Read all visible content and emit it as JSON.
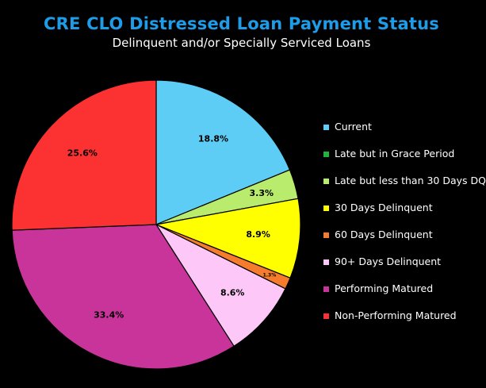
{
  "chart_data": {
    "type": "pie",
    "title": "CRE CLO Distressed Loan Payment Status",
    "subtitle": "Delinquent and/or Specially Serviced Loans",
    "title_color": "#1e9ce8",
    "subtitle_color": "#ffffff",
    "background": "#000000",
    "legend_position": "right",
    "slices": [
      {
        "label": "Current",
        "value": 18.8,
        "display": "18.8%",
        "color": "#5ecdf5"
      },
      {
        "label": "Late but in Grace Period",
        "value": 0.0,
        "display": "",
        "color": "#1fb53a"
      },
      {
        "label": "Late but less than 30 Days DQ",
        "value": 3.3,
        "display": "3.3%",
        "color": "#b9ec6c"
      },
      {
        "label": "30 Days Delinquent",
        "value": 8.9,
        "display": "8.9%",
        "color": "#ffff00"
      },
      {
        "label": "60 Days Delinquent",
        "value": 1.3,
        "display": "1.3%",
        "color": "#f47c2c"
      },
      {
        "label": "90+ Days Delinquent",
        "value": 8.6,
        "display": "8.6%",
        "color": "#fdc8f8"
      },
      {
        "label": "Performing Matured",
        "value": 33.4,
        "display": "33.4%",
        "color": "#c9349a"
      },
      {
        "label": "Non-Performing Matured",
        "value": 25.6,
        "display": "25.6%",
        "color": "#fc3131"
      }
    ]
  }
}
